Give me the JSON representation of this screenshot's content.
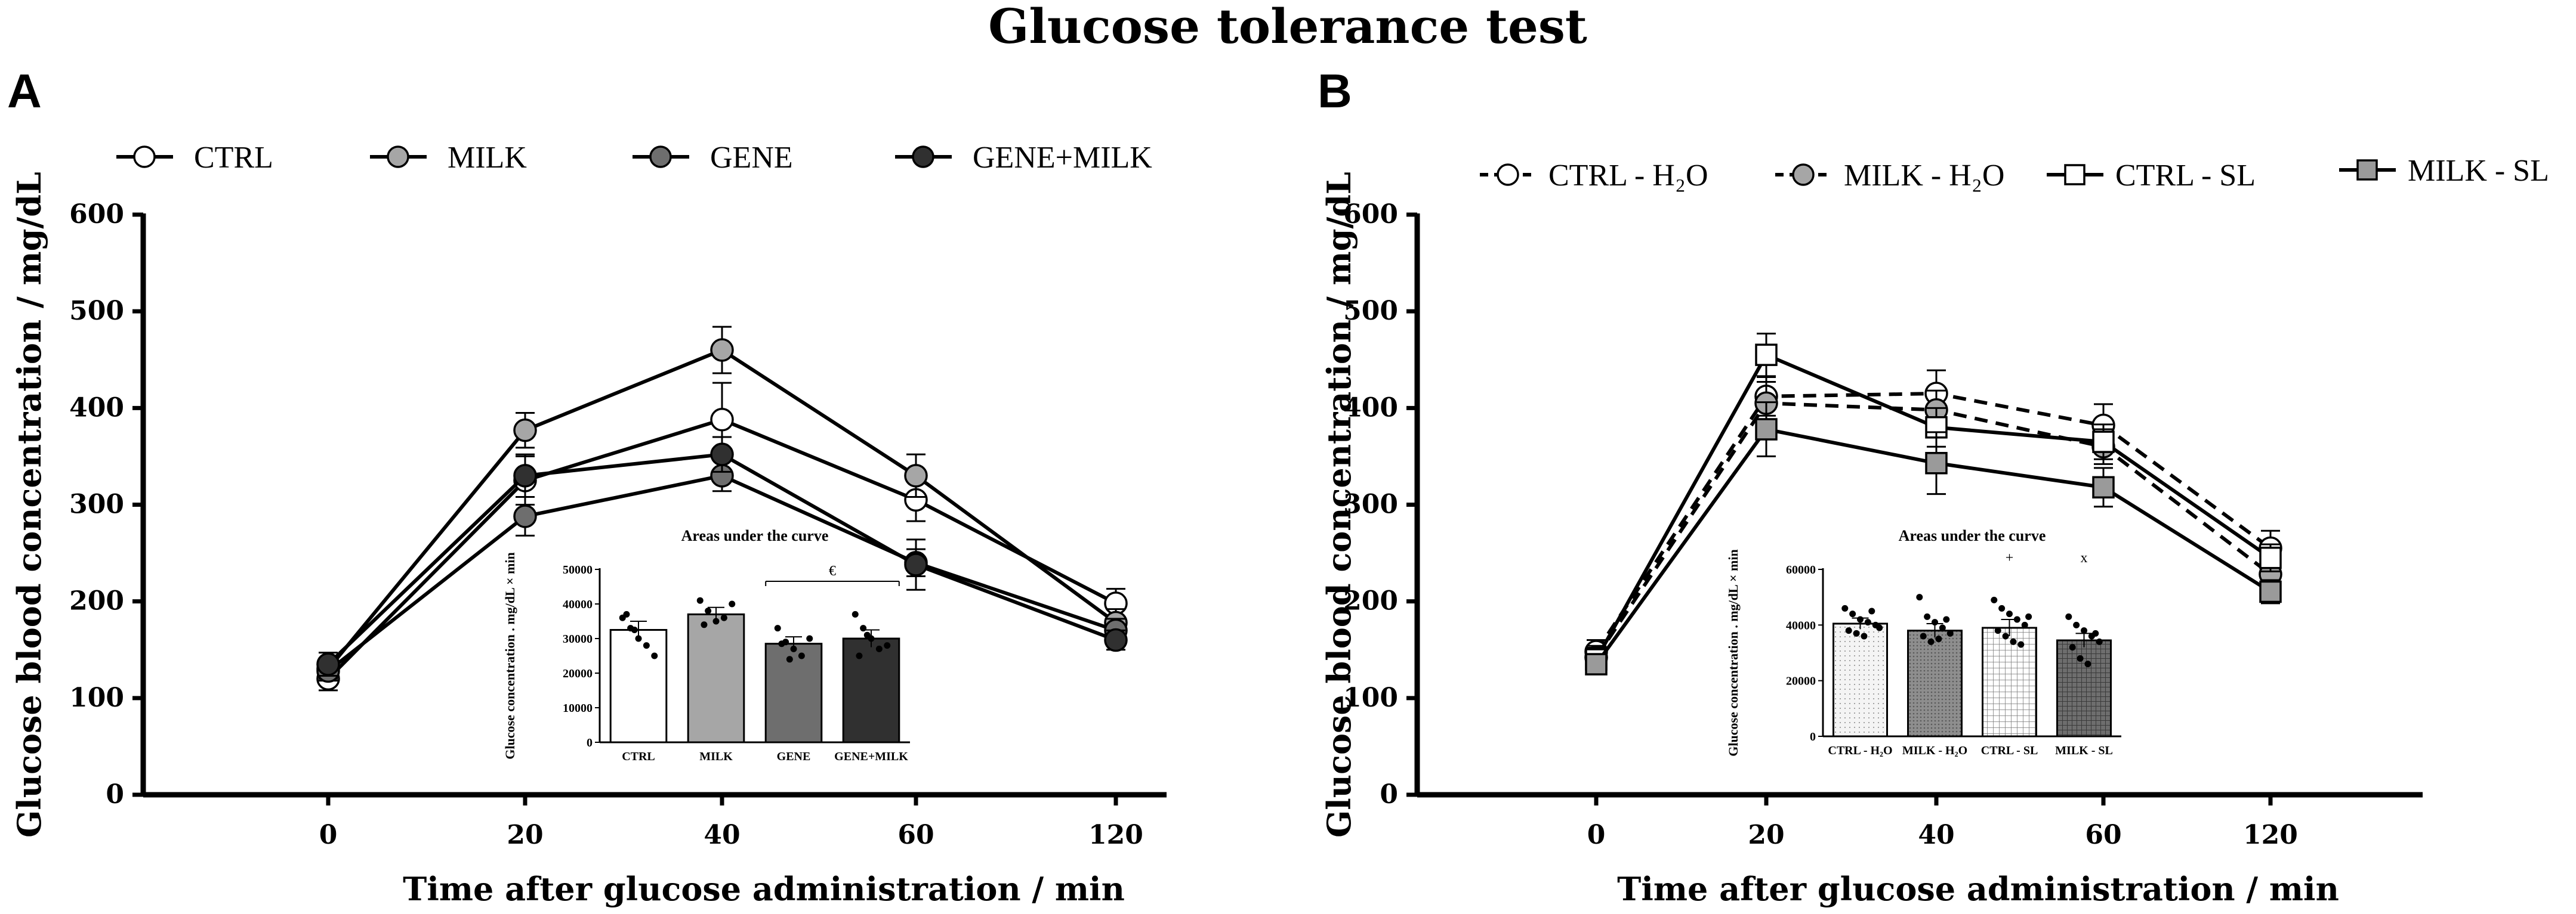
{
  "figure_title": "Glucose tolerance test",
  "colors": {
    "ctrl": "#ffffff",
    "milk": "#a6a6a6",
    "gene": "#6e6e6e",
    "gene_milk": "#303030",
    "milk_sl": "#9a9a9a",
    "line": "#000000"
  },
  "chart_data": [
    {
      "panel": "A",
      "type": "line",
      "x": [
        "0",
        "20",
        "40",
        "60",
        "120"
      ],
      "xlabel": "Time after glucose administration / min",
      "ylabel": "Glucose blood concentration / mg/dL",
      "ylim": [
        0,
        600
      ],
      "yticks": [
        "0",
        "100",
        "200",
        "300",
        "400",
        "500",
        "600"
      ],
      "series": [
        {
          "name": "CTRL",
          "marker": "circle",
          "dashed": false,
          "color": "#ffffff",
          "values": [
            120,
            325,
            388,
            305,
            198
          ],
          "errors": [
            12,
            25,
            38,
            22,
            15
          ]
        },
        {
          "name": "MILK",
          "marker": "circle",
          "dashed": false,
          "color": "#a6a6a6",
          "values": [
            130,
            377,
            460,
            330,
            178
          ],
          "errors": [
            10,
            18,
            24,
            22,
            14
          ]
        },
        {
          "name": "GENE",
          "marker": "circle",
          "dashed": false,
          "color": "#6e6e6e",
          "values": [
            128,
            288,
            330,
            240,
            170
          ],
          "errors": [
            10,
            20,
            16,
            14,
            12
          ]
        },
        {
          "name": "GENE+MILK",
          "marker": "circle",
          "dashed": false,
          "color": "#303030",
          "values": [
            135,
            330,
            352,
            238,
            160
          ],
          "errors": [
            12,
            22,
            18,
            26,
            10
          ]
        }
      ],
      "inset": {
        "title": "Areas under the curve",
        "ylabel": "Glucose concentration . mg/dL × min",
        "ylim": [
          0,
          50000
        ],
        "yticks": [
          "0",
          "10000",
          "20000",
          "30000",
          "40000",
          "50000"
        ],
        "categories": [
          "CTRL",
          "MILK",
          "GENE",
          "GENE+MILK"
        ],
        "values": [
          32500,
          37000,
          28500,
          30000
        ],
        "errors": [
          2500,
          2000,
          2000,
          2500
        ],
        "colors": [
          "#ffffff",
          "#a6a6a6",
          "#6e6e6e",
          "#303030"
        ],
        "points": [
          [
            36000,
            33000,
            30000,
            28000,
            25000,
            37000,
            32500
          ],
          [
            41000,
            38000,
            35000,
            36000,
            40000,
            34000
          ],
          [
            33000,
            29000,
            27000,
            25000,
            30000,
            28500,
            24000
          ],
          [
            37000,
            33000,
            30000,
            27000,
            28000,
            25000,
            31000
          ]
        ],
        "annotation": "€",
        "annotation_span": [
          2,
          3
        ]
      }
    },
    {
      "panel": "B",
      "type": "line",
      "x": [
        "0",
        "20",
        "40",
        "60",
        "120"
      ],
      "xlabel": "Time after glucose administration / min",
      "ylabel": "Glucose blood concentration / mg/dL",
      "ylim": [
        0,
        600
      ],
      "yticks": [
        "0",
        "100",
        "200",
        "300",
        "400",
        "500",
        "600"
      ],
      "series": [
        {
          "name": "CTRL - H₂O",
          "marker": "circle",
          "dashed": true,
          "color": "#ffffff",
          "values": [
            148,
            412,
            415,
            382,
            255
          ],
          "errors": [
            12,
            20,
            24,
            22,
            18
          ]
        },
        {
          "name": "MILK - H₂O",
          "marker": "circle",
          "dashed": true,
          "color": "#a6a6a6",
          "values": [
            142,
            405,
            398,
            360,
            228
          ],
          "errors": [
            12,
            22,
            20,
            18,
            16
          ]
        },
        {
          "name": "CTRL - SL",
          "marker": "square",
          "dashed": false,
          "color": "#ffffff",
          "values": [
            140,
            455,
            380,
            365,
            245
          ],
          "errors": [
            12,
            22,
            20,
            18,
            14
          ]
        },
        {
          "name": "MILK - SL",
          "marker": "square",
          "dashed": false,
          "color": "#9a9a9a",
          "values": [
            135,
            378,
            343,
            318,
            210
          ],
          "errors": [
            10,
            28,
            32,
            20,
            12
          ]
        }
      ],
      "inset": {
        "title": "Areas under the curve",
        "ylabel": "Glucose concentration . mg/dL × min",
        "ylim": [
          0,
          60000
        ],
        "yticks": [
          "0",
          "20000",
          "40000",
          "60000"
        ],
        "categories": [
          "CTRL - H₂O",
          "MILK - H₂O",
          "CTRL - SL",
          "MILK - SL"
        ],
        "values": [
          40500,
          38000,
          39000,
          34500
        ],
        "errors": [
          2000,
          2500,
          3000,
          2500
        ],
        "colors": [
          "#f2f2f2",
          "#9a9a9a",
          "#ffffff",
          "#7a7a7a"
        ],
        "patterns": [
          "dots",
          "dense",
          "grid",
          "dark-grid"
        ],
        "points": [
          [
            46000,
            44000,
            42000,
            41000,
            40000,
            38000,
            37000,
            36000,
            45000,
            39000
          ],
          [
            50000,
            43000,
            41000,
            39000,
            37000,
            36000,
            34000,
            35000,
            42000
          ],
          [
            49000,
            46000,
            44000,
            42000,
            40000,
            38000,
            36000,
            34000,
            33000,
            43000
          ],
          [
            43000,
            40000,
            38000,
            36000,
            34000,
            32000,
            28000,
            26000,
            37000
          ]
        ],
        "annotations": [
          {
            "bar": 2,
            "text": "+"
          },
          {
            "bar": 3,
            "text": "x"
          }
        ]
      }
    }
  ]
}
